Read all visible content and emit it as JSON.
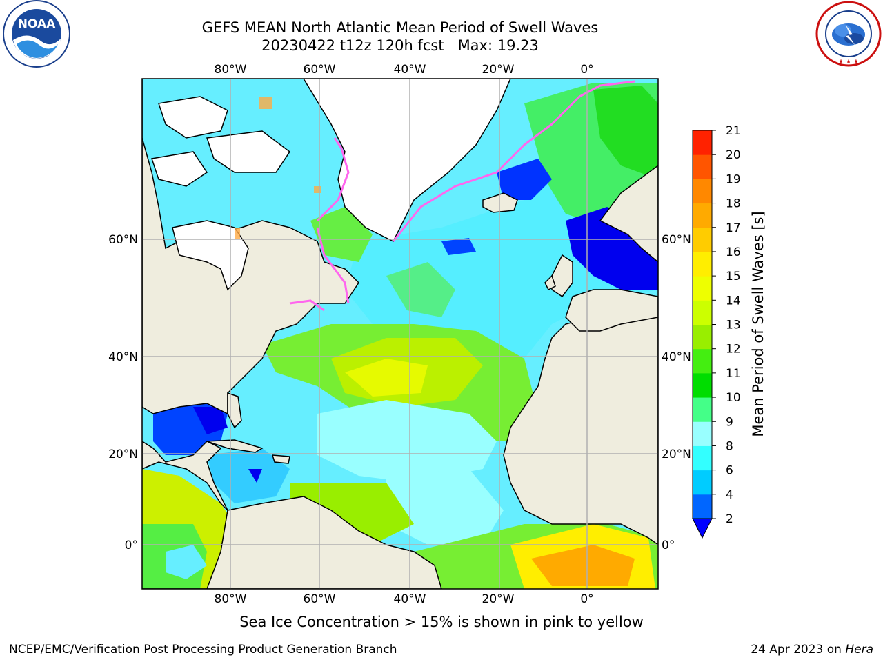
{
  "header": {
    "title_line1": "GEFS MEAN North Atlantic Mean Period of Swell Waves",
    "title_line2": "20230422 t12z 120h fcst   Max: 19.23"
  },
  "logos": {
    "left": {
      "name": "noaa-logo",
      "text": "NOAA",
      "ring_text": "NATIONAL OCEANIC AND ATMOSPHERIC ADMINISTRATION · U.S. DEPARTMENT OF COMMERCE"
    },
    "right": {
      "name": "nws-logo",
      "ring_text": "NATIONAL WEATHER SERVICE"
    }
  },
  "map": {
    "lon_labels": [
      "80°W",
      "60°W",
      "40°W",
      "20°W",
      "0°"
    ],
    "lat_labels": [
      "60°N",
      "40°N",
      "20°N",
      "0°"
    ],
    "colors": {
      "land": "#efedde",
      "ice_pink": "#ff66ee",
      "grid": "#b0b0b0"
    }
  },
  "colorbar": {
    "label": "Mean Period of Swell Waves [s]",
    "ticks": [
      "2",
      "4",
      "6",
      "8",
      "9",
      "10",
      "11",
      "12",
      "13",
      "14",
      "15",
      "16",
      "17",
      "18",
      "19",
      "20",
      "21"
    ],
    "colors": [
      "#0066ff",
      "#00ccff",
      "#33ffff",
      "#99ffff",
      "#44ff88",
      "#00dd00",
      "#44ee11",
      "#99ee00",
      "#ccff00",
      "#eeff00",
      "#ffee00",
      "#ffcc00",
      "#ffaa00",
      "#ff8800",
      "#ff5500",
      "#ff2200"
    ],
    "under_color": "#0000ff"
  },
  "footer": {
    "note": "Sea Ice Concentration > 15% is shown in pink to yellow",
    "credit": "NCEP/EMC/Verification Post Processing Product Generation Branch",
    "date": "24 Apr 2023 on ",
    "host": "Hera"
  }
}
